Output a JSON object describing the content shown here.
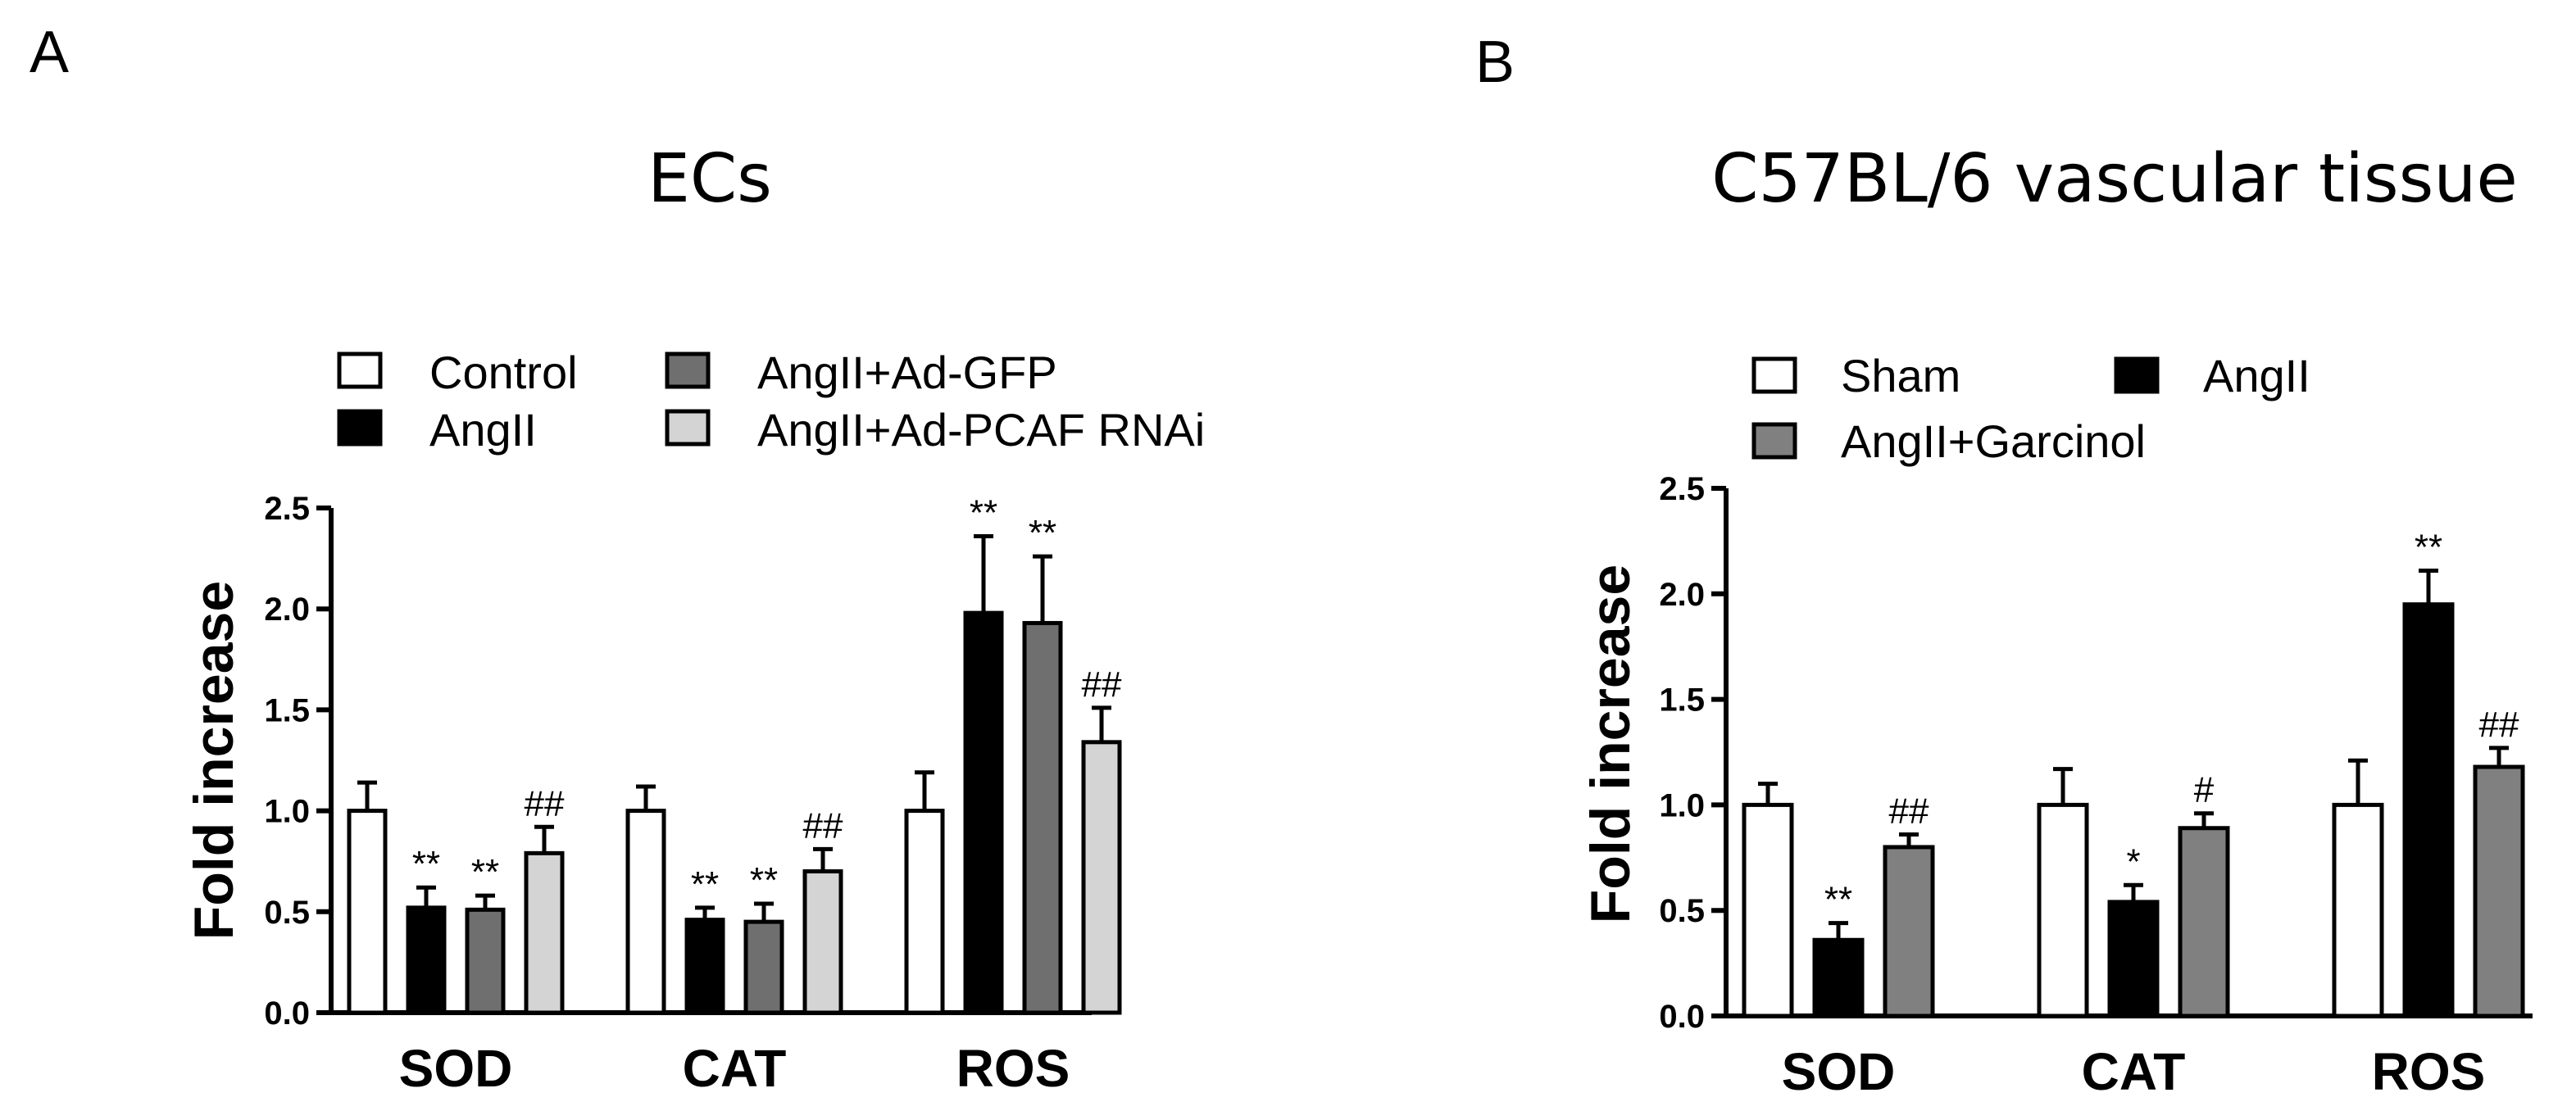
{
  "panels": [
    {
      "letter": "A",
      "title": "ECs"
    },
    {
      "letter": "B",
      "title": "C57BL/6 vascular tissue"
    }
  ],
  "chart_data": [
    {
      "type": "bar",
      "title": "ECs",
      "xlabel": "",
      "ylabel": "Fold increase",
      "ylim": [
        0,
        2.5
      ],
      "yticks": [
        "0.0",
        "0.5",
        "1.0",
        "1.5",
        "2.0",
        "2.5"
      ],
      "categories": [
        "SOD",
        "CAT",
        "ROS"
      ],
      "legend_placement": "top",
      "grid": false,
      "series": [
        {
          "name": "Control",
          "color": "#ffffff",
          "values": [
            1.0,
            1.0,
            1.0
          ],
          "errors": [
            0.14,
            0.12,
            0.19
          ],
          "labels": [
            "",
            "",
            ""
          ]
        },
        {
          "name": "AngII",
          "color": "#000000",
          "values": [
            0.52,
            0.46,
            1.98
          ],
          "errors": [
            0.1,
            0.06,
            0.38
          ],
          "labels": [
            "**",
            "**",
            "**"
          ]
        },
        {
          "name": "AngII+Ad-GFP",
          "color": "#6f6f6f",
          "values": [
            0.51,
            0.45,
            1.93
          ],
          "errors": [
            0.07,
            0.09,
            0.33
          ],
          "labels": [
            "**",
            "**",
            "**"
          ]
        },
        {
          "name": "AngII+Ad-PCAF RNAi",
          "color": "#d4d4d4",
          "values": [
            0.79,
            0.7,
            1.34
          ],
          "errors": [
            0.13,
            0.11,
            0.17
          ],
          "labels": [
            "##",
            "##",
            "##"
          ]
        }
      ]
    },
    {
      "type": "bar",
      "title": "C57BL/6 vascular tissue",
      "xlabel": "",
      "ylabel": "Fold increase",
      "ylim": [
        0,
        2.5
      ],
      "yticks": [
        "0.0",
        "0.5",
        "1.0",
        "1.5",
        "2.0",
        "2.5"
      ],
      "categories": [
        "SOD",
        "CAT",
        "ROS"
      ],
      "legend_placement": "top",
      "grid": false,
      "series": [
        {
          "name": "Sham",
          "color": "#ffffff",
          "values": [
            1.0,
            1.0,
            1.0
          ],
          "errors": [
            0.1,
            0.17,
            0.21
          ],
          "labels": [
            "",
            "",
            ""
          ]
        },
        {
          "name": "AngII",
          "color": "#000000",
          "values": [
            0.36,
            0.54,
            1.95
          ],
          "errors": [
            0.08,
            0.08,
            0.16
          ],
          "labels": [
            "**",
            "*",
            "**"
          ]
        },
        {
          "name": "AngII+Garcinol",
          "color": "#808080",
          "values": [
            0.8,
            0.89,
            1.18
          ],
          "errors": [
            0.06,
            0.07,
            0.09
          ],
          "labels": [
            "##",
            "#",
            "##"
          ]
        }
      ]
    }
  ]
}
